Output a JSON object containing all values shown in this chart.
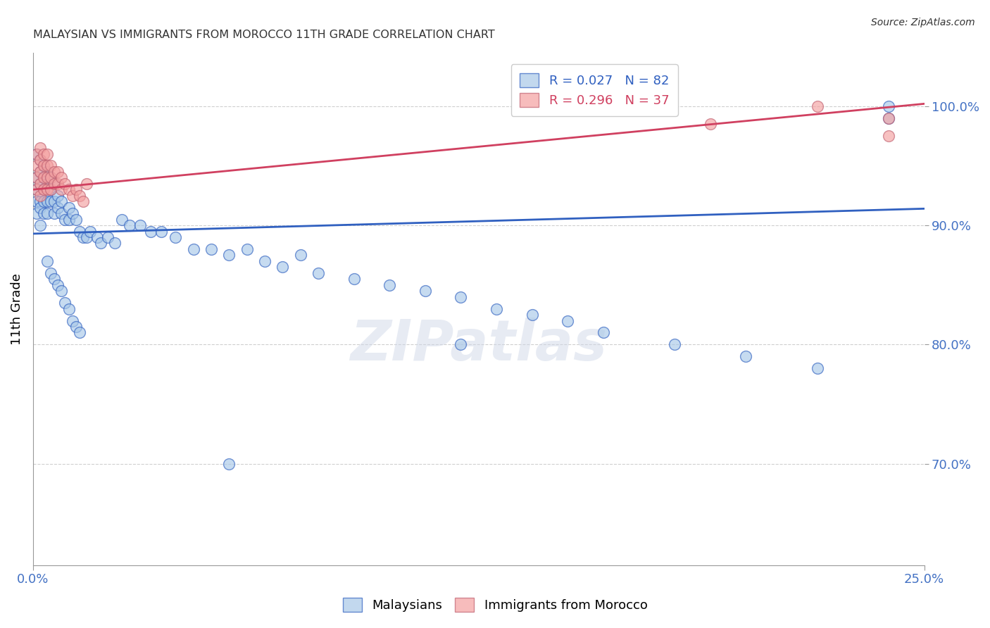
{
  "title": "MALAYSIAN VS IMMIGRANTS FROM MOROCCO 11TH GRADE CORRELATION CHART",
  "source": "Source: ZipAtlas.com",
  "ylabel": "11th Grade",
  "xmin": 0.0,
  "xmax": 0.25,
  "ymin": 0.615,
  "ymax": 1.045,
  "yticks": [
    0.7,
    0.8,
    0.9,
    1.0
  ],
  "ytick_labels": [
    "70.0%",
    "80.0%",
    "90.0%",
    "100.0%"
  ],
  "xticks": [
    0.0,
    0.25
  ],
  "xtick_labels": [
    "0.0%",
    "25.0%"
  ],
  "legend_r1": "R = 0.027",
  "legend_n1": "N = 82",
  "legend_r2": "R = 0.296",
  "legend_n2": "N = 37",
  "color_malaysian": "#a8c8e8",
  "color_morocco": "#f4a0a0",
  "color_trend_malaysian": "#3060c0",
  "color_trend_morocco": "#d04060",
  "color_axis_labels": "#4472c4",
  "watermark": "ZIPatlas",
  "mal_trend_x0": 0.0,
  "mal_trend_x1": 0.25,
  "mal_trend_y0": 0.893,
  "mal_trend_y1": 0.914,
  "mor_trend_x0": 0.0,
  "mor_trend_x1": 0.25,
  "mor_trend_y0": 0.93,
  "mor_trend_y1": 1.002,
  "malaysian_x": [
    0.001,
    0.001,
    0.001,
    0.001,
    0.001,
    0.002,
    0.002,
    0.002,
    0.002,
    0.002,
    0.002,
    0.003,
    0.003,
    0.003,
    0.003,
    0.003,
    0.004,
    0.004,
    0.004,
    0.004,
    0.005,
    0.005,
    0.005,
    0.006,
    0.006,
    0.006,
    0.007,
    0.007,
    0.008,
    0.008,
    0.009,
    0.01,
    0.01,
    0.011,
    0.012,
    0.013,
    0.014,
    0.015,
    0.016,
    0.018,
    0.019,
    0.021,
    0.023,
    0.025,
    0.027,
    0.03,
    0.033,
    0.036,
    0.04,
    0.045,
    0.05,
    0.055,
    0.06,
    0.065,
    0.07,
    0.075,
    0.08,
    0.09,
    0.1,
    0.11,
    0.12,
    0.13,
    0.14,
    0.15,
    0.16,
    0.18,
    0.2,
    0.22,
    0.24,
    0.004,
    0.005,
    0.006,
    0.007,
    0.008,
    0.009,
    0.01,
    0.011,
    0.012,
    0.013,
    0.055,
    0.12,
    0.24
  ],
  "malaysian_y": [
    0.96,
    0.94,
    0.93,
    0.92,
    0.91,
    0.955,
    0.945,
    0.935,
    0.92,
    0.915,
    0.9,
    0.95,
    0.94,
    0.93,
    0.92,
    0.91,
    0.945,
    0.935,
    0.92,
    0.91,
    0.94,
    0.93,
    0.92,
    0.935,
    0.92,
    0.91,
    0.925,
    0.915,
    0.92,
    0.91,
    0.905,
    0.915,
    0.905,
    0.91,
    0.905,
    0.895,
    0.89,
    0.89,
    0.895,
    0.89,
    0.885,
    0.89,
    0.885,
    0.905,
    0.9,
    0.9,
    0.895,
    0.895,
    0.89,
    0.88,
    0.88,
    0.875,
    0.88,
    0.87,
    0.865,
    0.875,
    0.86,
    0.855,
    0.85,
    0.845,
    0.84,
    0.83,
    0.825,
    0.82,
    0.81,
    0.8,
    0.79,
    0.78,
    0.99,
    0.87,
    0.86,
    0.855,
    0.85,
    0.845,
    0.835,
    0.83,
    0.82,
    0.815,
    0.81,
    0.7,
    0.8,
    1.0
  ],
  "morocco_x": [
    0.001,
    0.001,
    0.001,
    0.001,
    0.002,
    0.002,
    0.002,
    0.002,
    0.002,
    0.003,
    0.003,
    0.003,
    0.003,
    0.004,
    0.004,
    0.004,
    0.004,
    0.005,
    0.005,
    0.005,
    0.006,
    0.006,
    0.007,
    0.007,
    0.008,
    0.008,
    0.009,
    0.01,
    0.011,
    0.012,
    0.013,
    0.014,
    0.015,
    0.19,
    0.22,
    0.24,
    0.24
  ],
  "morocco_y": [
    0.96,
    0.95,
    0.94,
    0.93,
    0.965,
    0.955,
    0.945,
    0.935,
    0.925,
    0.96,
    0.95,
    0.94,
    0.93,
    0.96,
    0.95,
    0.94,
    0.93,
    0.95,
    0.94,
    0.93,
    0.945,
    0.935,
    0.945,
    0.935,
    0.94,
    0.93,
    0.935,
    0.93,
    0.925,
    0.93,
    0.925,
    0.92,
    0.935,
    0.985,
    1.0,
    0.99,
    0.975
  ]
}
